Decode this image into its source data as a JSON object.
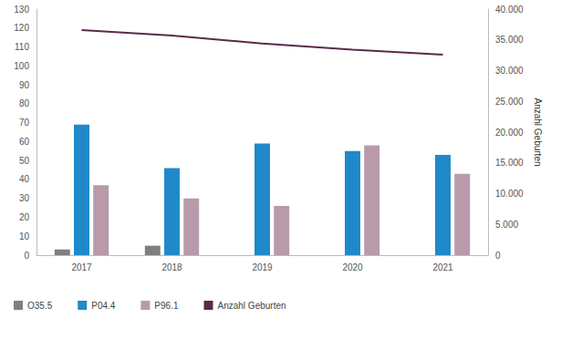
{
  "chart_data": {
    "type": "bar",
    "categories": [
      "2017",
      "2018",
      "2019",
      "2020",
      "2021"
    ],
    "series": [
      {
        "name": "O35.5",
        "type": "bar",
        "color": "#7f7f7f",
        "values": [
          3,
          5,
          null,
          null,
          null
        ]
      },
      {
        "name": "P04.4",
        "type": "bar",
        "color": "#2089c9",
        "values": [
          69,
          46,
          59,
          55,
          53
        ]
      },
      {
        "name": "P96.1",
        "type": "bar",
        "color": "#b89aab",
        "values": [
          37,
          30,
          26,
          58,
          43
        ]
      },
      {
        "name": "Anzahl Geburten",
        "type": "line",
        "axis": "y2",
        "color": "#5a2a4a",
        "values": [
          36600,
          35700,
          34400,
          33400,
          32600
        ]
      }
    ],
    "ylim": [
      0,
      130
    ],
    "yticks": [
      0,
      10,
      20,
      30,
      40,
      50,
      60,
      70,
      80,
      90,
      100,
      110,
      120,
      130
    ],
    "y2label": "Anzahl Geburten",
    "y2lim": [
      0,
      40000
    ],
    "y2ticks": [
      0,
      {
        "value": 5000,
        "label": "5.000"
      },
      {
        "value": 10000,
        "label": "10.000"
      },
      {
        "value": 15000,
        "label": "15.000"
      },
      {
        "value": 20000,
        "label": "20.000"
      },
      {
        "value": 25000,
        "label": "25.000"
      },
      {
        "value": 30000,
        "label": "30.000"
      },
      {
        "value": 35000,
        "label": "35.000"
      },
      {
        "value": 40000,
        "label": "40.000"
      }
    ],
    "grid": false,
    "legend": "bottom-left"
  }
}
